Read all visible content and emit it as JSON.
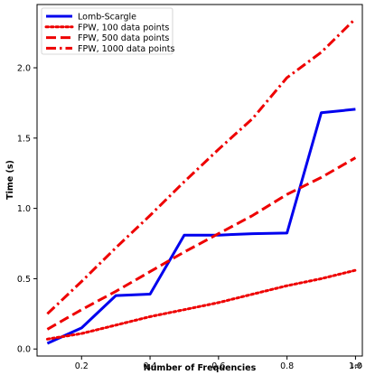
{
  "chart_data": {
    "type": "line",
    "xlabel": "Number of Frequencies",
    "ylabel": "Time (s)",
    "x_offset_label": "1e6",
    "xlim": [
      0.07,
      1.02
    ],
    "ylim": [
      -0.05,
      2.45
    ],
    "xticks": [
      0.2,
      0.4,
      0.6,
      0.8,
      1.0
    ],
    "xtick_labels": [
      "0.2",
      "0.4",
      "0.6",
      "0.8",
      "1.0"
    ],
    "yticks": [
      0.0,
      0.5,
      1.0,
      1.5,
      2.0
    ],
    "ytick_labels": [
      "0.0",
      "0.5",
      "1.0",
      "1.5",
      "2.0"
    ],
    "grid": false,
    "legend_position": "top-left",
    "series": [
      {
        "name": "Lomb-Scargle",
        "color": "#0000ee",
        "style": "solid",
        "x": [
          0.1,
          0.2,
          0.3,
          0.4,
          0.5,
          0.6,
          0.7,
          0.8,
          0.9,
          1.0
        ],
        "y": [
          0.04,
          0.15,
          0.38,
          0.39,
          0.81,
          0.81,
          0.82,
          0.825,
          1.68,
          1.705
        ]
      },
      {
        "name": "FPW, 100 data points",
        "color": "#ee0000",
        "style": "dotted",
        "x": [
          0.1,
          0.2,
          0.3,
          0.4,
          0.5,
          0.6,
          0.7,
          0.8,
          0.9,
          1.0
        ],
        "y": [
          0.07,
          0.11,
          0.17,
          0.23,
          0.28,
          0.33,
          0.39,
          0.45,
          0.5,
          0.56
        ]
      },
      {
        "name": "FPW, 500 data points",
        "color": "#ee0000",
        "style": "dashed",
        "x": [
          0.1,
          0.2,
          0.3,
          0.4,
          0.5,
          0.6,
          0.7,
          0.8,
          0.9,
          1.0
        ],
        "y": [
          0.14,
          0.28,
          0.41,
          0.55,
          0.69,
          0.82,
          0.95,
          1.1,
          1.22,
          1.36
        ]
      },
      {
        "name": "FPW, 1000 data points",
        "color": "#ee0000",
        "style": "dashdot",
        "x": [
          0.1,
          0.2,
          0.3,
          0.4,
          0.5,
          0.6,
          0.7,
          0.8,
          0.9,
          1.0
        ],
        "y": [
          0.25,
          0.48,
          0.72,
          0.95,
          1.19,
          1.42,
          1.64,
          1.93,
          2.11,
          2.35
        ]
      }
    ]
  }
}
